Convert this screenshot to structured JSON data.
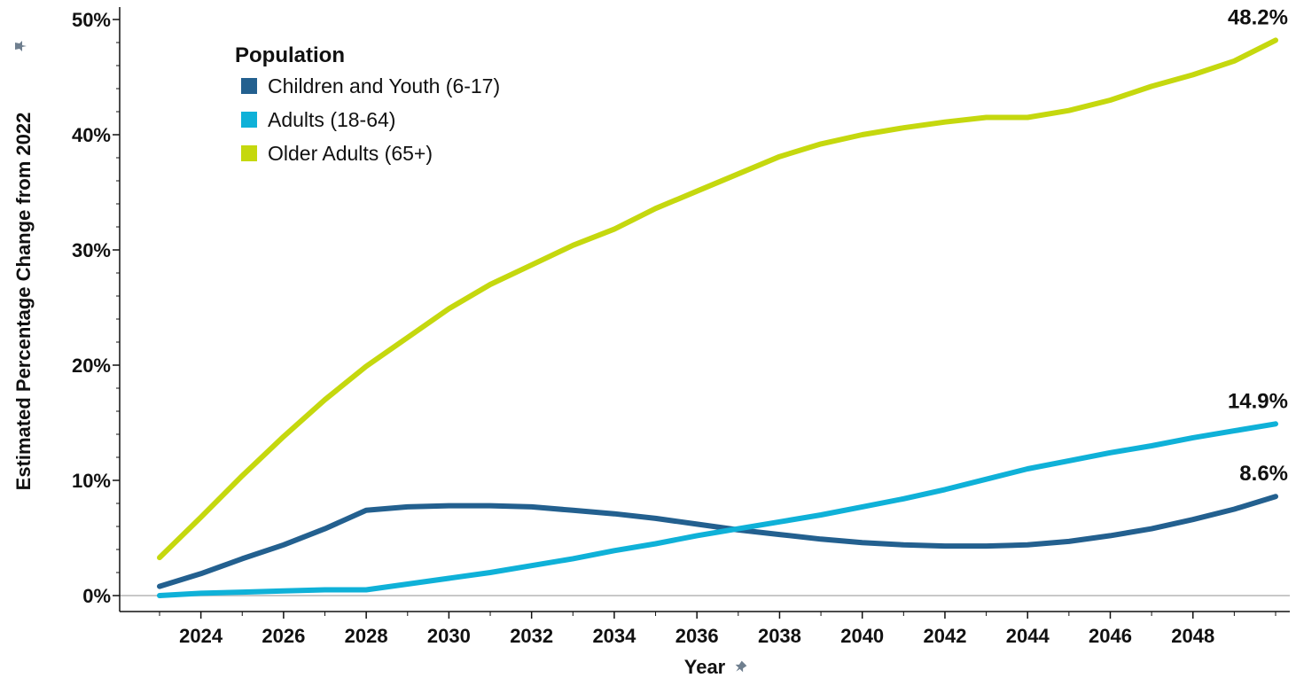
{
  "chart_data": {
    "type": "line",
    "xlabel": "Year",
    "ylabel": "Estimated Percentage Change from 2022",
    "xlim": [
      2023,
      2050
    ],
    "ylim": [
      0,
      50
    ],
    "x_ticks": [
      2024,
      2026,
      2028,
      2030,
      2032,
      2034,
      2036,
      2038,
      2040,
      2042,
      2044,
      2046,
      2048
    ],
    "y_ticks": [
      0,
      10,
      20,
      30,
      40,
      50
    ],
    "y_tick_labels": [
      "0%",
      "10%",
      "20%",
      "30%",
      "40%",
      "50%"
    ],
    "grid": false,
    "legend": {
      "title": "Population",
      "placement": "top-left"
    },
    "x": [
      2023,
      2024,
      2025,
      2026,
      2027,
      2028,
      2029,
      2030,
      2031,
      2032,
      2033,
      2034,
      2035,
      2036,
      2037,
      2038,
      2039,
      2040,
      2041,
      2042,
      2043,
      2044,
      2045,
      2046,
      2047,
      2048,
      2049,
      2050
    ],
    "series": [
      {
        "name": "Children and Youth (6-17)",
        "color": "#23608f",
        "end_label": "8.6%",
        "values": [
          0.8,
          1.9,
          3.2,
          4.4,
          5.8,
          7.4,
          7.7,
          7.8,
          7.8,
          7.7,
          7.4,
          7.1,
          6.7,
          6.2,
          5.7,
          5.3,
          4.9,
          4.6,
          4.4,
          4.3,
          4.3,
          4.4,
          4.7,
          5.2,
          5.8,
          6.6,
          7.5,
          8.6
        ]
      },
      {
        "name": "Adults (18-64)",
        "color": "#0fb1d8",
        "end_label": "14.9%",
        "values": [
          0.0,
          0.2,
          0.3,
          0.4,
          0.5,
          0.5,
          1.0,
          1.5,
          2.0,
          2.6,
          3.2,
          3.9,
          4.5,
          5.2,
          5.8,
          6.4,
          7.0,
          7.7,
          8.4,
          9.2,
          10.1,
          11.0,
          11.7,
          12.4,
          13.0,
          13.7,
          14.3,
          14.9
        ]
      },
      {
        "name": "Older Adults (65+)",
        "color": "#c5d80e",
        "end_label": "48.2%",
        "values": [
          3.3,
          6.8,
          10.4,
          13.8,
          17.0,
          19.9,
          22.4,
          24.9,
          27.0,
          28.7,
          30.4,
          31.8,
          33.6,
          35.1,
          36.6,
          38.1,
          39.2,
          40.0,
          40.6,
          41.1,
          41.5,
          41.5,
          42.1,
          43.0,
          44.2,
          45.2,
          46.4,
          48.2
        ]
      }
    ]
  }
}
